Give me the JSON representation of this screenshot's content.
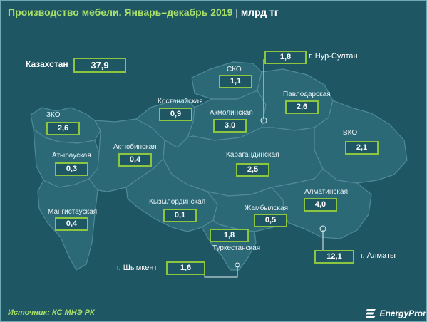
{
  "title": {
    "main": "Производство мебели. Январь–декабрь 2019",
    "sep": " | ",
    "unit": "млрд тг"
  },
  "total": {
    "label": "Казахстан",
    "value": "37,9"
  },
  "regions": [
    {
      "name": "ЗКО",
      "value": "2,6"
    },
    {
      "name": "Атырауская",
      "value": "0,3"
    },
    {
      "name": "Мангистауская",
      "value": "0,4"
    },
    {
      "name": "Актюбинская",
      "value": "0,4"
    },
    {
      "name": "Костанайская",
      "value": "0,9"
    },
    {
      "name": "СКО",
      "value": "1,1"
    },
    {
      "name": "Акмолинская",
      "value": "3,0"
    },
    {
      "name": "Павлодарская",
      "value": "2,6"
    },
    {
      "name": "ВКО",
      "value": "2,1"
    },
    {
      "name": "Карагандинская",
      "value": "2,5"
    },
    {
      "name": "Кызылординская",
      "value": "0,1"
    },
    {
      "name": "Жамбылская",
      "value": "0,5"
    },
    {
      "name": "Алматинская",
      "value": "4,0"
    },
    {
      "name": "Туркестанская",
      "value": "1,8"
    }
  ],
  "cities": [
    {
      "name": "г. Нур-Султан",
      "value": "1,8"
    },
    {
      "name": "г. Алматы",
      "value": "12,1"
    },
    {
      "name": "г. Шымкент",
      "value": "1,6"
    }
  ],
  "footer": {
    "source": "Источник: КС МНЭ РК",
    "logo": "EnergyProm"
  },
  "colors": {
    "background": "#1f5664",
    "region_fill": "#2b6977",
    "border": "#8cc640",
    "accent": "#a8e06a"
  }
}
